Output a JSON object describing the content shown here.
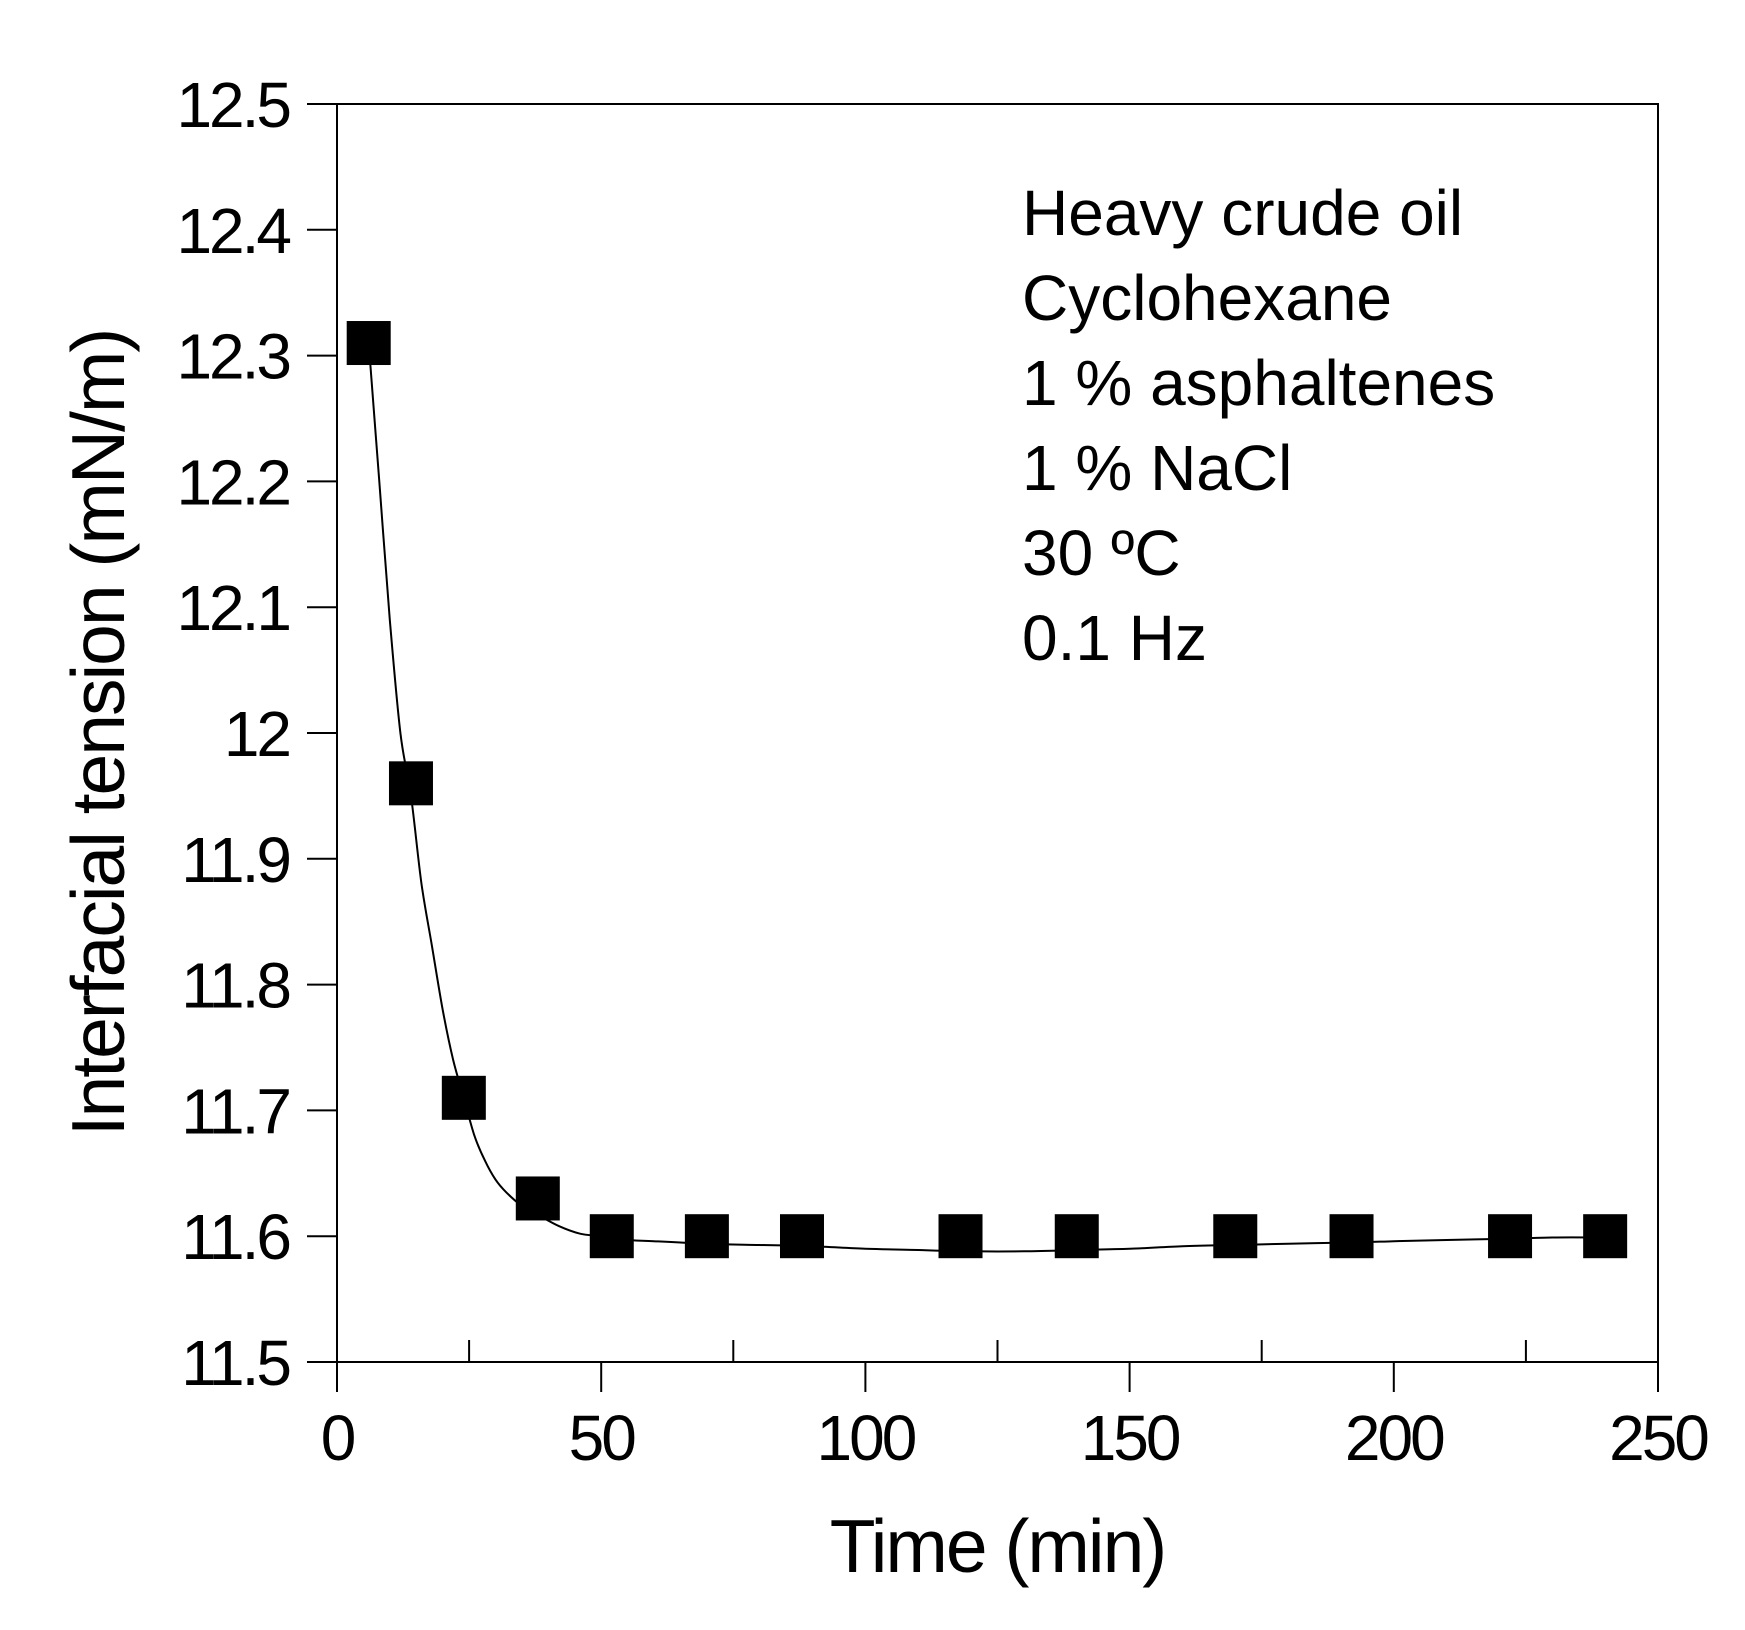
{
  "chart_data": {
    "type": "scatter",
    "xlabel": "Time (min)",
    "ylabel": "Interfacial tension (mN/m)",
    "xlim": [
      0,
      250
    ],
    "ylim": [
      11.5,
      12.5
    ],
    "x_major_ticks": [
      0,
      50,
      100,
      150,
      200,
      250
    ],
    "x_tick_labels": [
      "0",
      "50",
      "100",
      "150",
      "200",
      "250"
    ],
    "x_minor_ticks": [
      25,
      75,
      125,
      175,
      225
    ],
    "y_major_ticks": [
      11.5,
      11.6,
      11.7,
      11.8,
      11.9,
      12.0,
      12.1,
      12.2,
      12.3,
      12.4,
      12.5
    ],
    "y_tick_labels": [
      "11.5",
      "11.6",
      "11.7",
      "11.8",
      "11.9",
      "12",
      "12.1",
      "12.2",
      "12.3",
      "12.4",
      "12.5"
    ],
    "grid": false,
    "marker": "filled-square",
    "marker_color": "#000000",
    "line_color": "#000000",
    "series": [
      {
        "x": [
          6,
          14,
          24,
          38,
          52,
          70,
          88,
          118,
          140,
          170,
          192,
          222,
          240
        ],
        "y": [
          12.31,
          11.96,
          11.71,
          11.63,
          11.6,
          11.6,
          11.6,
          11.6,
          11.6,
          11.6,
          11.6,
          11.6,
          11.6
        ]
      }
    ],
    "fit_curve": {
      "x": [
        6,
        8,
        10,
        12,
        14,
        16,
        18,
        20,
        22,
        24,
        26,
        28,
        30,
        32,
        35,
        38,
        42,
        46,
        50,
        55,
        60,
        70,
        80,
        90,
        100,
        110,
        120,
        130,
        140,
        150,
        160,
        170,
        180,
        192,
        200,
        210,
        222,
        230,
        240
      ],
      "y": [
        12.31,
        12.2,
        12.09,
        12.0,
        11.95,
        11.88,
        11.83,
        11.78,
        11.74,
        11.71,
        11.68,
        11.66,
        11.645,
        11.635,
        11.624,
        11.617,
        11.608,
        11.602,
        11.6,
        11.597,
        11.596,
        11.594,
        11.593,
        11.592,
        11.59,
        11.589,
        11.588,
        11.588,
        11.589,
        11.59,
        11.592,
        11.593,
        11.594,
        11.595,
        11.596,
        11.597,
        11.598,
        11.599,
        11.599
      ]
    },
    "annotations": [
      "Heavy crude oil",
      "Cyclohexane",
      "1 % asphaltenes",
      "1 % NaCl",
      "30 ºC",
      "0.1 Hz"
    ]
  }
}
